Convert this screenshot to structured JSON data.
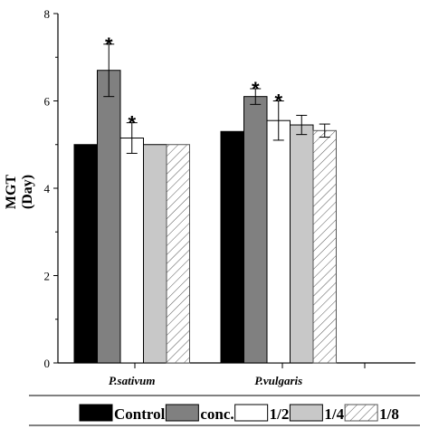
{
  "chart_data": {
    "type": "bar",
    "categories": [
      "P.sativum",
      "P.vulgaris"
    ],
    "ylabel_lines": [
      "MGT",
      "(Day)"
    ],
    "xlabel": "",
    "ylim": [
      0,
      8
    ],
    "yticks": [
      0,
      2,
      4,
      6,
      8
    ],
    "grid": false,
    "legend_position": "bottom",
    "series": [
      {
        "name": "Control",
        "values": [
          5.0,
          5.3
        ],
        "errors": [
          0,
          0
        ],
        "fill": "#000000",
        "pattern": "solid",
        "stars": [
          false,
          false
        ]
      },
      {
        "name": "conc.",
        "values": [
          6.7,
          6.1
        ],
        "errors": [
          0.6,
          0.18
        ],
        "fill": "#808080",
        "pattern": "solid",
        "stars": [
          true,
          true
        ]
      },
      {
        "name": "1/2",
        "values": [
          5.15,
          5.55
        ],
        "errors": [
          0.35,
          0.45
        ],
        "fill": "#ffffff",
        "pattern": "solid",
        "stars": [
          true,
          true
        ]
      },
      {
        "name": "1/4",
        "values": [
          5.0,
          5.45
        ],
        "errors": [
          0,
          0.22
        ],
        "fill": "#c8c8c8",
        "pattern": "solid",
        "stars": [
          false,
          false
        ]
      },
      {
        "name": "1/8",
        "values": [
          5.0,
          5.32
        ],
        "errors": [
          0,
          0.15
        ],
        "fill": "#ffffff",
        "pattern": "hatch",
        "stars": [
          false,
          false
        ]
      }
    ],
    "annotation_symbol": "*"
  }
}
